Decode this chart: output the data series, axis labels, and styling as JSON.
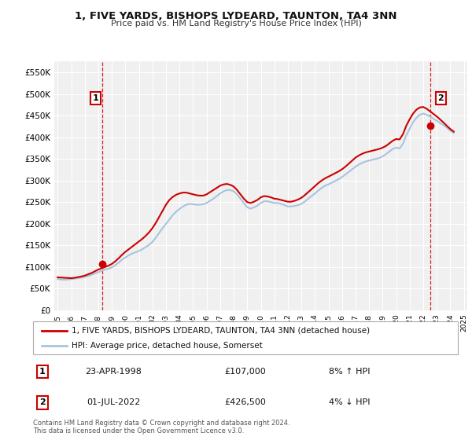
{
  "title": "1, FIVE YARDS, BISHOPS LYDEARD, TAUNTON, TA4 3NN",
  "subtitle": "Price paid vs. HM Land Registry's House Price Index (HPI)",
  "background_color": "#ffffff",
  "plot_bg_color": "#f0f0f0",
  "grid_color": "#ffffff",
  "ylim": [
    0,
    575000
  ],
  "yticks": [
    0,
    50000,
    100000,
    150000,
    200000,
    250000,
    300000,
    350000,
    400000,
    450000,
    500000,
    550000
  ],
  "ytick_labels": [
    "£0",
    "£50K",
    "£100K",
    "£150K",
    "£200K",
    "£250K",
    "£300K",
    "£350K",
    "£400K",
    "£450K",
    "£500K",
    "£550K"
  ],
  "hpi_years": [
    1995.0,
    1995.25,
    1995.5,
    1995.75,
    1996.0,
    1996.25,
    1996.5,
    1996.75,
    1997.0,
    1997.25,
    1997.5,
    1997.75,
    1998.0,
    1998.25,
    1998.5,
    1998.75,
    1999.0,
    1999.25,
    1999.5,
    1999.75,
    2000.0,
    2000.25,
    2000.5,
    2000.75,
    2001.0,
    2001.25,
    2001.5,
    2001.75,
    2002.0,
    2002.25,
    2002.5,
    2002.75,
    2003.0,
    2003.25,
    2003.5,
    2003.75,
    2004.0,
    2004.25,
    2004.5,
    2004.75,
    2005.0,
    2005.25,
    2005.5,
    2005.75,
    2006.0,
    2006.25,
    2006.5,
    2006.75,
    2007.0,
    2007.25,
    2007.5,
    2007.75,
    2008.0,
    2008.25,
    2008.5,
    2008.75,
    2009.0,
    2009.25,
    2009.5,
    2009.75,
    2010.0,
    2010.25,
    2010.5,
    2010.75,
    2011.0,
    2011.25,
    2011.5,
    2011.75,
    2012.0,
    2012.25,
    2012.5,
    2012.75,
    2013.0,
    2013.25,
    2013.5,
    2013.75,
    2014.0,
    2014.25,
    2014.5,
    2014.75,
    2015.0,
    2015.25,
    2015.5,
    2015.75,
    2016.0,
    2016.25,
    2016.5,
    2016.75,
    2017.0,
    2017.25,
    2017.5,
    2017.75,
    2018.0,
    2018.25,
    2018.5,
    2018.75,
    2019.0,
    2019.25,
    2019.5,
    2019.75,
    2020.0,
    2020.25,
    2020.5,
    2020.75,
    2021.0,
    2021.25,
    2021.5,
    2021.75,
    2022.0,
    2022.25,
    2022.5,
    2022.75,
    2023.0,
    2023.25,
    2023.5,
    2023.75,
    2024.0,
    2024.25
  ],
  "hpi_values": [
    72000,
    71000,
    70500,
    71000,
    72000,
    73000,
    74000,
    75000,
    77000,
    79000,
    82000,
    85000,
    88000,
    91000,
    94000,
    96000,
    99000,
    104000,
    110000,
    117000,
    122000,
    127000,
    131000,
    134000,
    137000,
    141000,
    146000,
    151000,
    158000,
    168000,
    179000,
    190000,
    200000,
    210000,
    220000,
    228000,
    234000,
    240000,
    244000,
    246000,
    245000,
    244000,
    244000,
    245000,
    248000,
    253000,
    258000,
    264000,
    270000,
    275000,
    278000,
    278000,
    275000,
    268000,
    258000,
    248000,
    238000,
    235000,
    238000,
    242000,
    248000,
    252000,
    252000,
    250000,
    248000,
    248000,
    246000,
    243000,
    240000,
    240000,
    241000,
    243000,
    246000,
    251000,
    258000,
    264000,
    270000,
    277000,
    283000,
    288000,
    291000,
    295000,
    299000,
    303000,
    308000,
    314000,
    320000,
    326000,
    332000,
    337000,
    341000,
    344000,
    346000,
    348000,
    350000,
    352000,
    356000,
    361000,
    367000,
    373000,
    376000,
    374000,
    385000,
    405000,
    420000,
    435000,
    445000,
    452000,
    455000,
    452000,
    448000,
    443000,
    438000,
    433000,
    428000,
    422000,
    415000,
    410000
  ],
  "red_years": [
    1995.0,
    1995.25,
    1995.5,
    1995.75,
    1996.0,
    1996.25,
    1996.5,
    1996.75,
    1997.0,
    1997.25,
    1997.5,
    1997.75,
    1998.0,
    1998.25,
    1998.5,
    1998.75,
    1999.0,
    1999.25,
    1999.5,
    1999.75,
    2000.0,
    2000.25,
    2000.5,
    2000.75,
    2001.0,
    2001.25,
    2001.5,
    2001.75,
    2002.0,
    2002.25,
    2002.5,
    2002.75,
    2003.0,
    2003.25,
    2003.5,
    2003.75,
    2004.0,
    2004.25,
    2004.5,
    2004.75,
    2005.0,
    2005.25,
    2005.5,
    2005.75,
    2006.0,
    2006.25,
    2006.5,
    2006.75,
    2007.0,
    2007.25,
    2007.5,
    2007.75,
    2008.0,
    2008.25,
    2008.5,
    2008.75,
    2009.0,
    2009.25,
    2009.5,
    2009.75,
    2010.0,
    2010.25,
    2010.5,
    2010.75,
    2011.0,
    2011.25,
    2011.5,
    2011.75,
    2012.0,
    2012.25,
    2012.5,
    2012.75,
    2013.0,
    2013.25,
    2013.5,
    2013.75,
    2014.0,
    2014.25,
    2014.5,
    2014.75,
    2015.0,
    2015.25,
    2015.5,
    2015.75,
    2016.0,
    2016.25,
    2016.5,
    2016.75,
    2017.0,
    2017.25,
    2017.5,
    2017.75,
    2018.0,
    2018.25,
    2018.5,
    2018.75,
    2019.0,
    2019.25,
    2019.5,
    2019.75,
    2020.0,
    2020.25,
    2020.5,
    2020.75,
    2021.0,
    2021.25,
    2021.5,
    2021.75,
    2022.0,
    2022.25,
    2022.5,
    2022.75,
    2023.0,
    2023.25,
    2023.5,
    2023.75,
    2024.0,
    2024.25
  ],
  "red_values": [
    76000,
    75500,
    75000,
    74500,
    74000,
    75000,
    76500,
    78000,
    80000,
    83000,
    86000,
    90000,
    94000,
    97000,
    100000,
    103000,
    107000,
    113000,
    120000,
    128000,
    135000,
    141000,
    147000,
    153000,
    159000,
    165000,
    172000,
    180000,
    190000,
    202000,
    216000,
    230000,
    244000,
    255000,
    262000,
    267000,
    270000,
    272000,
    272000,
    270000,
    268000,
    266000,
    265000,
    265000,
    268000,
    273000,
    278000,
    283000,
    288000,
    291000,
    292000,
    290000,
    286000,
    278000,
    268000,
    258000,
    250000,
    248000,
    251000,
    255000,
    261000,
    264000,
    263000,
    261000,
    258000,
    257000,
    255000,
    253000,
    251000,
    251000,
    253000,
    256000,
    260000,
    266000,
    273000,
    280000,
    287000,
    294000,
    300000,
    305000,
    309000,
    313000,
    317000,
    321000,
    326000,
    332000,
    339000,
    346000,
    353000,
    358000,
    362000,
    365000,
    367000,
    369000,
    371000,
    373000,
    376000,
    380000,
    386000,
    392000,
    396000,
    395000,
    407000,
    427000,
    442000,
    455000,
    464000,
    469000,
    470000,
    466000,
    460000,
    454000,
    448000,
    441000,
    434000,
    426000,
    419000,
    413000
  ],
  "sale1_x": 1998.31,
  "sale1_y": 107000,
  "sale2_x": 2022.5,
  "sale2_y": 426500,
  "hpi_color": "#a8c4de",
  "red_color": "#cc0000",
  "vline_color": "#cc0000",
  "legend_label_red": "1, FIVE YARDS, BISHOPS LYDEARD, TAUNTON, TA4 3NN (detached house)",
  "legend_label_blue": "HPI: Average price, detached house, Somerset",
  "table_rows": [
    {
      "num": "1",
      "date": "23-APR-1998",
      "price": "£107,000",
      "hpi": "8% ↑ HPI"
    },
    {
      "num": "2",
      "date": "01-JUL-2022",
      "price": "£426,500",
      "hpi": "4% ↓ HPI"
    }
  ],
  "footer": "Contains HM Land Registry data © Crown copyright and database right 2024.\nThis data is licensed under the Open Government Licence v3.0.",
  "xticks": [
    1995,
    1996,
    1997,
    1998,
    1999,
    2000,
    2001,
    2002,
    2003,
    2004,
    2005,
    2006,
    2007,
    2008,
    2009,
    2010,
    2011,
    2012,
    2013,
    2014,
    2015,
    2016,
    2017,
    2018,
    2019,
    2020,
    2021,
    2022,
    2023,
    2024,
    2025
  ]
}
